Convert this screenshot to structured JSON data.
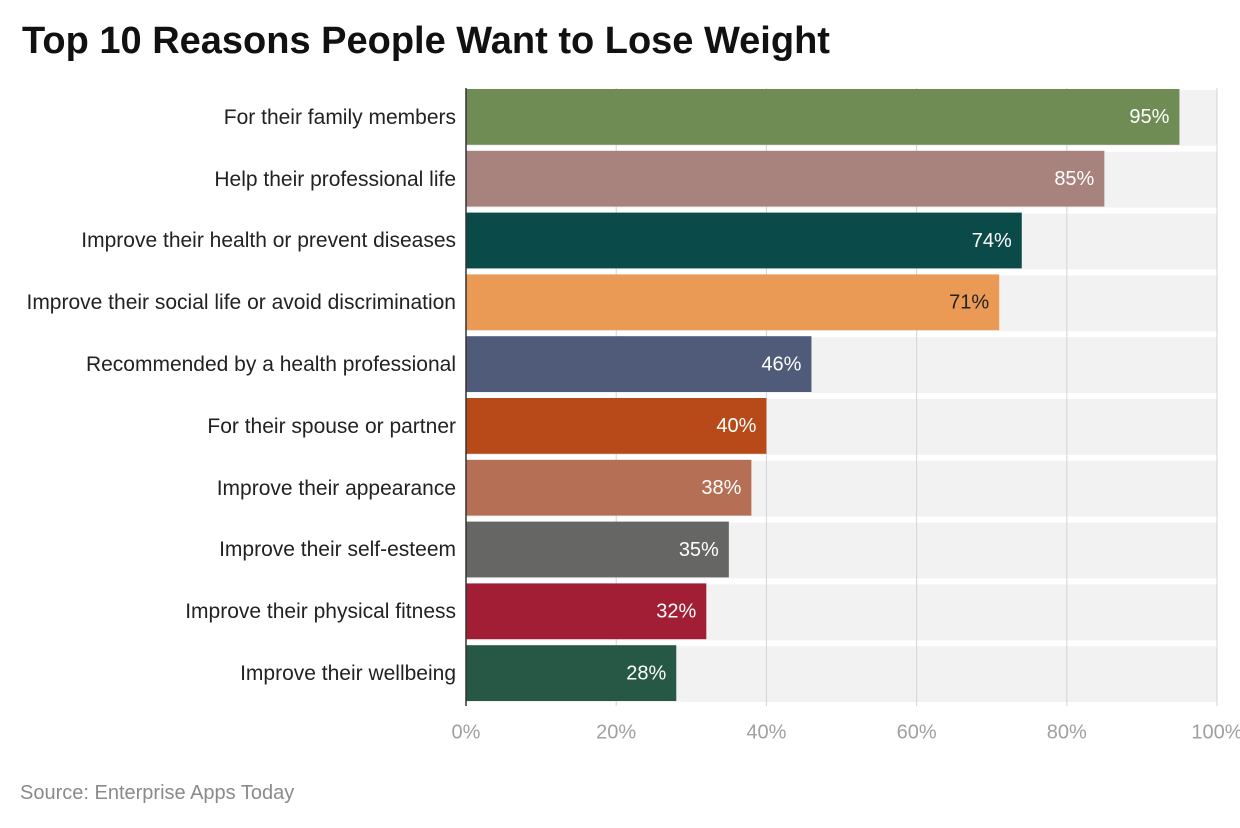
{
  "chart_data": {
    "type": "bar",
    "orientation": "horizontal",
    "title": "Top 10 Reasons People Want to Lose Weight",
    "source": "Source: Enterprise Apps Today",
    "categories": [
      "For their family members",
      "Help their professional life",
      "Improve their health or prevent diseases",
      "Improve their social life or avoid discrimination",
      "Recommended by a health professional",
      "For their spouse or partner",
      "Improve their appearance",
      "Improve their self-esteem",
      "Improve their physical fitness",
      "Improve their wellbeing"
    ],
    "values": [
      95,
      85,
      74,
      71,
      46,
      40,
      38,
      35,
      32,
      28
    ],
    "value_labels": [
      "95%",
      "85%",
      "74%",
      "71%",
      "46%",
      "40%",
      "38%",
      "35%",
      "32%",
      "28%"
    ],
    "colors": [
      "#708c55",
      "#a8837e",
      "#0a4a48",
      "#ea9a54",
      "#4f5b78",
      "#b74a18",
      "#b46f54",
      "#666664",
      "#a11e35",
      "#275846"
    ],
    "xlim": [
      0,
      100
    ],
    "xticks": [
      {
        "value": 0,
        "label": "0%"
      },
      {
        "value": 20,
        "label": "20%"
      },
      {
        "value": 40,
        "label": "40%"
      },
      {
        "value": 60,
        "label": "60%"
      },
      {
        "value": 80,
        "label": "80%"
      },
      {
        "value": 100,
        "label": "100%"
      }
    ],
    "grid": true
  }
}
